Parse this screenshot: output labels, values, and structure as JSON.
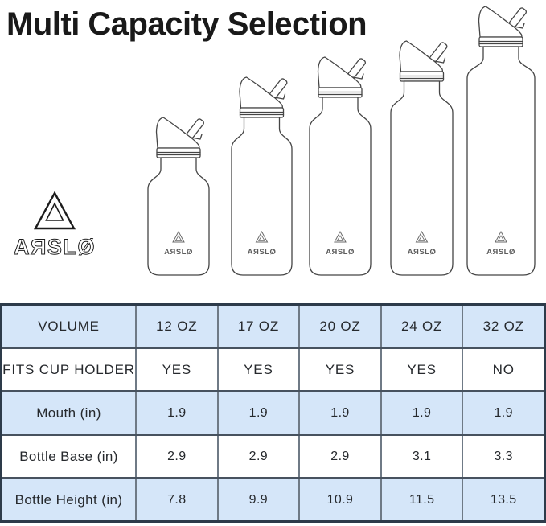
{
  "title": "Multi Capacity Selection",
  "brand": {
    "wordmark": "AЯSLØ"
  },
  "table": {
    "rows": [
      {
        "header": "VOLUME",
        "cells": [
          "12 OZ",
          "17 OZ",
          "20 OZ",
          "24 OZ",
          "32 OZ"
        ]
      },
      {
        "header": "FITS CUP HOLDER",
        "cells": [
          "YES",
          "YES",
          "YES",
          "YES",
          "NO"
        ]
      },
      {
        "header": "Mouth (in)",
        "cells": [
          "1.9",
          "1.9",
          "1.9",
          "1.9",
          "1.9"
        ]
      },
      {
        "header": "Bottle Base (in)",
        "cells": [
          "2.9",
          "2.9",
          "2.9",
          "3.1",
          "3.3"
        ]
      },
      {
        "header": "Bottle Height (in)",
        "cells": [
          "7.8",
          "9.9",
          "10.9",
          "11.5",
          "13.5"
        ]
      }
    ]
  },
  "colors": {
    "row_alt": "#d5e6f9",
    "border_outer": "#2d3b4a",
    "border_row": "#47525f",
    "border_col": "#6f7a86",
    "outline": "#454545",
    "text": "#26292d"
  }
}
